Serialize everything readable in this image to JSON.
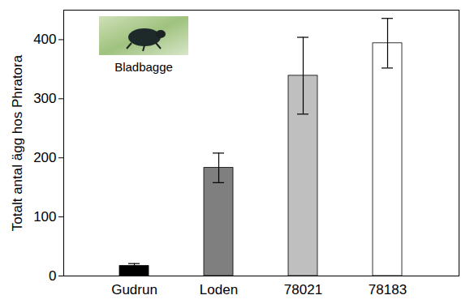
{
  "chart_data": {
    "type": "bar",
    "ylabel": "Totalt antal ägg hos Phratora",
    "categories": [
      "Gudrun",
      "Loden",
      "78021",
      "78183"
    ],
    "values": [
      17,
      183,
      339,
      394
    ],
    "errors": [
      4,
      25,
      65,
      42
    ],
    "colors": [
      "#000000",
      "#7f7f7f",
      "#bfbfbf",
      "#ffffff"
    ],
    "ylim": [
      0,
      450
    ],
    "yticks": [
      0,
      100,
      200,
      300,
      400
    ],
    "grid": false,
    "annotations": [
      "Bladbagge"
    ]
  }
}
